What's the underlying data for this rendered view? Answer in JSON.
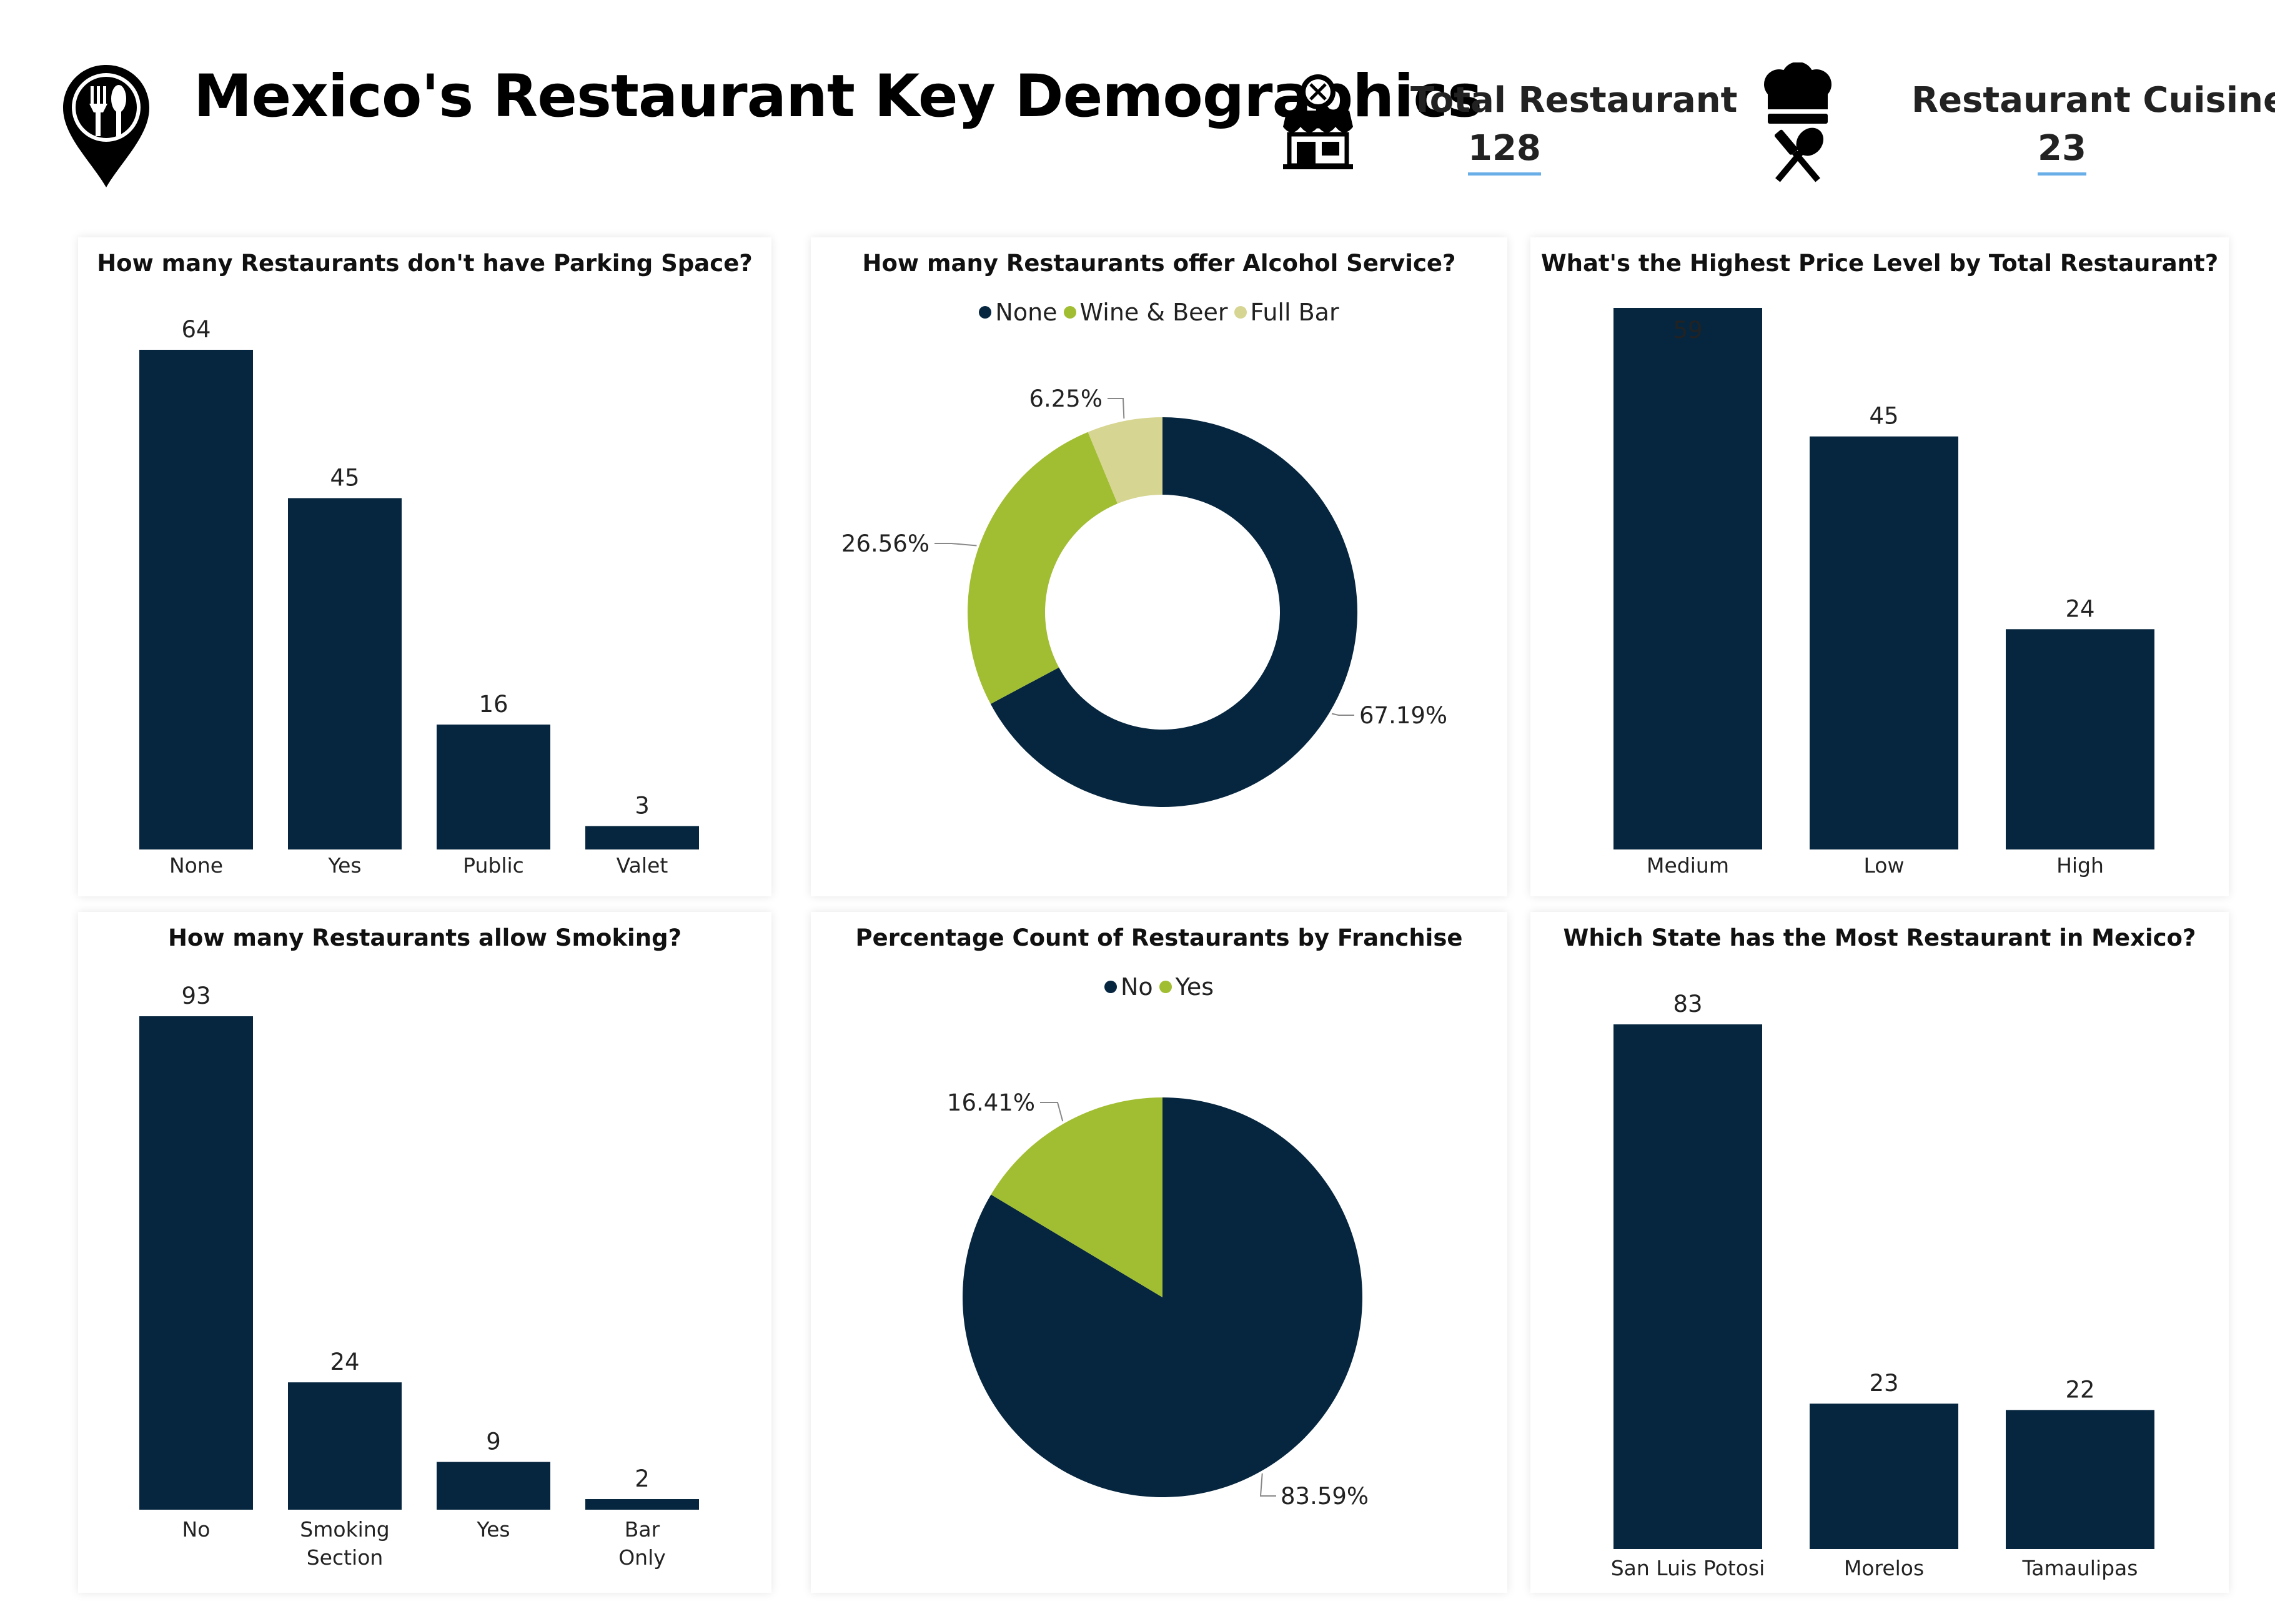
{
  "header": {
    "title": "Mexico's Restaurant Key Demographics",
    "kpis": [
      {
        "label": "Total Restaurant",
        "value": "128"
      },
      {
        "label": "Restaurant Cuisines",
        "value": "23"
      }
    ]
  },
  "colors": {
    "navy": "#06263f",
    "green": "#a1be32",
    "khaki": "#d6d592",
    "accent_underline": "#6aaee8"
  },
  "icons": [
    "restaurant-location-pin-icon",
    "restaurant-storefront-icon",
    "chef-hat-utensils-icon"
  ],
  "chart_data": [
    {
      "id": "parking",
      "type": "bar",
      "title": "How many Restaurants don't have Parking Space?",
      "categories": [
        "None",
        "Yes",
        "Public",
        "Valet"
      ],
      "values": [
        64,
        45,
        16,
        3
      ],
      "xlabel": "",
      "ylabel": "",
      "grid": false
    },
    {
      "id": "alcohol",
      "type": "pie",
      "donut": true,
      "title": "How many Restaurants offer Alcohol Service?",
      "legend": "top",
      "categories": [
        "None",
        "Wine & Beer",
        "Full Bar"
      ],
      "values": [
        67.19,
        26.56,
        6.25
      ],
      "labels": [
        "67.19%",
        "26.56%",
        "6.25%"
      ]
    },
    {
      "id": "price",
      "type": "bar",
      "title": "What's the Highest Price Level by Total Restaurant?",
      "categories": [
        "Medium",
        "Low",
        "High"
      ],
      "values": [
        59,
        45,
        24
      ],
      "xlabel": "",
      "ylabel": "",
      "grid": false
    },
    {
      "id": "smoking",
      "type": "bar",
      "title": "How many Restaurants allow Smoking?",
      "categories": [
        "No",
        "Smoking Section",
        "Yes",
        "Bar Only"
      ],
      "values": [
        93,
        24,
        9,
        2
      ],
      "xlabel": "",
      "ylabel": "",
      "grid": false
    },
    {
      "id": "franchise",
      "type": "pie",
      "donut": false,
      "title": "Percentage Count of Restaurants by Franchise",
      "legend": "top",
      "categories": [
        "No",
        "Yes"
      ],
      "values": [
        83.59,
        16.41
      ],
      "labels": [
        "83.59%",
        "16.41%"
      ]
    },
    {
      "id": "state",
      "type": "bar",
      "title": "Which State has the Most Restaurant in Mexico?",
      "categories": [
        "San Luis Potosi",
        "Morelos",
        "Tamaulipas"
      ],
      "values": [
        83,
        23,
        22
      ],
      "xlabel": "",
      "ylabel": "",
      "grid": false
    }
  ]
}
